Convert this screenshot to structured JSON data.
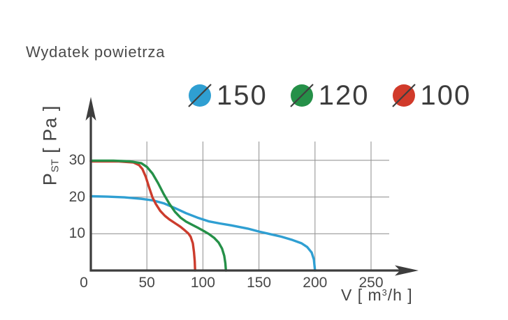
{
  "title": "Wydatek powietrza",
  "legend": {
    "items": [
      {
        "label": "150",
        "color": "#2f9fd2",
        "icon": "diameter-circle-icon"
      },
      {
        "label": "120",
        "color": "#259048",
        "icon": "diameter-circle-icon"
      },
      {
        "label": "100",
        "color": "#d13a2a",
        "icon": "diameter-circle-icon"
      }
    ]
  },
  "axes": {
    "y_label_letter": "P",
    "y_label_subscript": "ST",
    "y_label_unit": " [ Pa ]",
    "x_label_prefix": "V [ m",
    "x_label_superscript": "3",
    "x_label_suffix": "/h ]"
  },
  "colors": {
    "axis": "#3d3d3d",
    "grid": "#979797",
    "text": "#4a4a4a"
  },
  "chart_data": {
    "type": "line",
    "title": "Wydatek powietrza",
    "xlabel": "V [ m³/h ]",
    "ylabel": "PST [ Pa ]",
    "x_unit": "m³/h",
    "y_unit": "Pa",
    "xlim": [
      0,
      250
    ],
    "ylim": [
      0,
      35
    ],
    "x_tick_labels": [
      0,
      50,
      100,
      150,
      200,
      250
    ],
    "y_tick_labels": [
      10,
      20,
      30
    ],
    "x_gridlines": [
      50,
      100,
      150,
      200,
      250
    ],
    "y_gridlines": [
      10,
      20,
      30
    ],
    "grid": true,
    "legend_position": "top",
    "series": [
      {
        "name": "150",
        "color": "#2f9fd2",
        "points": [
          [
            0,
            20.2
          ],
          [
            15,
            20.1
          ],
          [
            30,
            19.9
          ],
          [
            45,
            19.5
          ],
          [
            55,
            19.1
          ],
          [
            65,
            18.3
          ],
          [
            75,
            17.0
          ],
          [
            85,
            15.6
          ],
          [
            95,
            14.4
          ],
          [
            105,
            13.4
          ],
          [
            115,
            12.8
          ],
          [
            125,
            12.3
          ],
          [
            140,
            11.4
          ],
          [
            150,
            10.6
          ],
          [
            160,
            9.9
          ],
          [
            170,
            9.2
          ],
          [
            180,
            8.3
          ],
          [
            188,
            7.4
          ],
          [
            193,
            6.4
          ],
          [
            197,
            4.9
          ],
          [
            199,
            3.0
          ],
          [
            200,
            0
          ]
        ]
      },
      {
        "name": "120",
        "color": "#259048",
        "points": [
          [
            0,
            29.9
          ],
          [
            20,
            29.9
          ],
          [
            35,
            29.7
          ],
          [
            45,
            29.2
          ],
          [
            50,
            28.2
          ],
          [
            55,
            26.4
          ],
          [
            60,
            23.8
          ],
          [
            65,
            20.8
          ],
          [
            70,
            18.2
          ],
          [
            75,
            16.0
          ],
          [
            80,
            14.4
          ],
          [
            85,
            13.3
          ],
          [
            90,
            12.5
          ],
          [
            95,
            11.7
          ],
          [
            100,
            10.9
          ],
          [
            105,
            10.0
          ],
          [
            110,
            8.9
          ],
          [
            114,
            7.6
          ],
          [
            117,
            6.0
          ],
          [
            119,
            4.0
          ],
          [
            120,
            2.0
          ],
          [
            120.5,
            0
          ]
        ]
      },
      {
        "name": "100",
        "color": "#cc3c2d",
        "points": [
          [
            0,
            29.7
          ],
          [
            25,
            29.7
          ],
          [
            38,
            29.4
          ],
          [
            43,
            28.7
          ],
          [
            46,
            27.6
          ],
          [
            49,
            25.5
          ],
          [
            52,
            22.6
          ],
          [
            55,
            19.9
          ],
          [
            58,
            18.1
          ],
          [
            62,
            16.2
          ],
          [
            66,
            14.9
          ],
          [
            70,
            13.9
          ],
          [
            75,
            12.9
          ],
          [
            80,
            11.9
          ],
          [
            84,
            10.9
          ],
          [
            87,
            10.1
          ],
          [
            89,
            9.2
          ],
          [
            91,
            7.4
          ],
          [
            92,
            5.0
          ],
          [
            92.7,
            2.5
          ],
          [
            93,
            0
          ]
        ]
      }
    ]
  }
}
